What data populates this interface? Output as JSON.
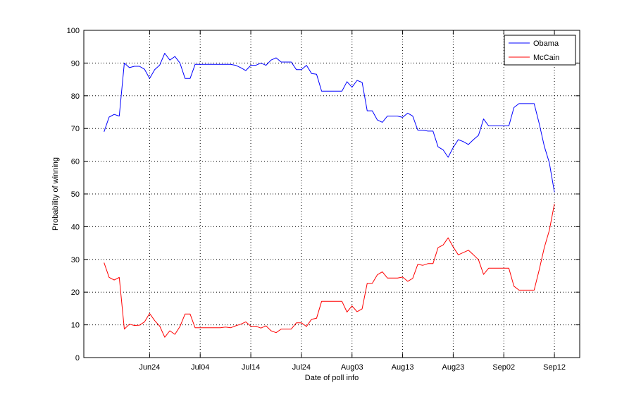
{
  "chart_data": {
    "type": "line",
    "title": "",
    "xlabel": "Date of poll info",
    "ylabel": "Probability of winning",
    "x_ticks": [
      "Jun24",
      "Jul04",
      "Jul14",
      "Jul24",
      "Aug03",
      "Aug13",
      "Aug23",
      "Sep02",
      "Sep12"
    ],
    "x_tick_days": [
      0,
      10,
      20,
      30,
      40,
      50,
      60,
      70,
      80
    ],
    "xlim": [
      "2008-06-11",
      "2008-09-17"
    ],
    "ylim": [
      0,
      100
    ],
    "y_ticks": [
      "0",
      "10",
      "20",
      "30",
      "40",
      "50",
      "60",
      "70",
      "80",
      "90",
      "100"
    ],
    "grid": true,
    "legend_position": "top-right",
    "series": [
      {
        "name": "Obama",
        "color": "#0000ff",
        "points": [
          [
            "2008-06-15",
            69
          ],
          [
            "2008-06-16",
            73.5
          ],
          [
            "2008-06-17",
            74.3
          ],
          [
            "2008-06-18",
            73.8
          ],
          [
            "2008-06-19",
            90
          ],
          [
            "2008-06-20",
            88.6
          ],
          [
            "2008-06-21",
            89
          ],
          [
            "2008-06-22",
            89
          ],
          [
            "2008-06-23",
            88.1
          ],
          [
            "2008-06-24",
            85.3
          ],
          [
            "2008-06-25",
            88
          ],
          [
            "2008-06-26",
            89.4
          ],
          [
            "2008-06-27",
            93
          ],
          [
            "2008-06-28",
            90.9
          ],
          [
            "2008-06-29",
            92
          ],
          [
            "2008-06-30",
            90
          ],
          [
            "2008-07-01",
            85.3
          ],
          [
            "2008-07-02",
            85.3
          ],
          [
            "2008-07-03",
            89.6
          ],
          [
            "2008-07-04",
            89.6
          ],
          [
            "2008-07-05",
            89.6
          ],
          [
            "2008-07-06",
            89.6
          ],
          [
            "2008-07-07",
            89.6
          ],
          [
            "2008-07-08",
            89.6
          ],
          [
            "2008-07-09",
            89.6
          ],
          [
            "2008-07-10",
            89.6
          ],
          [
            "2008-07-11",
            89.3
          ],
          [
            "2008-07-12",
            88.6
          ],
          [
            "2008-07-13",
            87.7
          ],
          [
            "2008-07-14",
            89.3
          ],
          [
            "2008-07-15",
            89.3
          ],
          [
            "2008-07-16",
            90
          ],
          [
            "2008-07-17",
            89.3
          ],
          [
            "2008-07-18",
            90.9
          ],
          [
            "2008-07-19",
            91.6
          ],
          [
            "2008-07-20",
            90.3
          ],
          [
            "2008-07-21",
            90.3
          ],
          [
            "2008-07-22",
            90.3
          ],
          [
            "2008-07-23",
            88
          ],
          [
            "2008-07-24",
            88
          ],
          [
            "2008-07-25",
            89.3
          ],
          [
            "2008-07-26",
            86.8
          ],
          [
            "2008-07-27",
            86.6
          ],
          [
            "2008-07-28",
            81.4
          ],
          [
            "2008-07-29",
            81.4
          ],
          [
            "2008-07-30",
            81.4
          ],
          [
            "2008-07-31",
            81.4
          ],
          [
            "2008-08-01",
            81.4
          ],
          [
            "2008-08-02",
            84.3
          ],
          [
            "2008-08-03",
            82.6
          ],
          [
            "2008-08-04",
            84.7
          ],
          [
            "2008-08-05",
            84.1
          ],
          [
            "2008-08-06",
            75.4
          ],
          [
            "2008-08-07",
            75.4
          ],
          [
            "2008-08-08",
            72.6
          ],
          [
            "2008-08-09",
            71.9
          ],
          [
            "2008-08-10",
            73.8
          ],
          [
            "2008-08-11",
            73.8
          ],
          [
            "2008-08-12",
            73.8
          ],
          [
            "2008-08-13",
            73.4
          ],
          [
            "2008-08-14",
            74.7
          ],
          [
            "2008-08-15",
            73.8
          ],
          [
            "2008-08-16",
            69.5
          ],
          [
            "2008-08-17",
            69.5
          ],
          [
            "2008-08-18",
            69.2
          ],
          [
            "2008-08-19",
            69.2
          ],
          [
            "2008-08-20",
            64.4
          ],
          [
            "2008-08-21",
            63.5
          ],
          [
            "2008-08-22",
            61.2
          ],
          [
            "2008-08-23",
            64.2
          ],
          [
            "2008-08-24",
            66.6
          ],
          [
            "2008-08-25",
            66
          ],
          [
            "2008-08-26",
            65.1
          ],
          [
            "2008-08-27",
            66.6
          ],
          [
            "2008-08-28",
            67.9
          ],
          [
            "2008-08-29",
            72.9
          ],
          [
            "2008-08-30",
            70.8
          ],
          [
            "2008-08-31",
            70.8
          ],
          [
            "2008-09-01",
            70.8
          ],
          [
            "2008-09-02",
            70.8
          ],
          [
            "2008-09-03",
            70.8
          ],
          [
            "2008-09-04",
            76.4
          ],
          [
            "2008-09-05",
            77.6
          ],
          [
            "2008-09-06",
            77.6
          ],
          [
            "2008-09-07",
            77.6
          ],
          [
            "2008-09-08",
            77.6
          ],
          [
            "2008-09-09",
            71.5
          ],
          [
            "2008-09-10",
            64.6
          ],
          [
            "2008-09-11",
            59.5
          ],
          [
            "2008-09-12",
            50.5
          ]
        ]
      },
      {
        "name": "McCain",
        "color": "#ff0000",
        "points": [
          [
            "2008-06-15",
            29
          ],
          [
            "2008-06-16",
            24.5
          ],
          [
            "2008-06-17",
            23.7
          ],
          [
            "2008-06-18",
            24.5
          ],
          [
            "2008-06-19",
            8.7
          ],
          [
            "2008-06-20",
            10.2
          ],
          [
            "2008-06-21",
            9.8
          ],
          [
            "2008-06-22",
            9.9
          ],
          [
            "2008-06-23",
            10.9
          ],
          [
            "2008-06-24",
            13.5
          ],
          [
            "2008-06-25",
            11.3
          ],
          [
            "2008-06-26",
            9.6
          ],
          [
            "2008-06-27",
            6.2
          ],
          [
            "2008-06-28",
            8.2
          ],
          [
            "2008-06-29",
            7.1
          ],
          [
            "2008-06-30",
            9.5
          ],
          [
            "2008-07-01",
            13.3
          ],
          [
            "2008-07-02",
            13.3
          ],
          [
            "2008-07-03",
            9.1
          ],
          [
            "2008-07-04",
            9.1
          ],
          [
            "2008-07-05",
            9.1
          ],
          [
            "2008-07-06",
            9.1
          ],
          [
            "2008-07-07",
            9.1
          ],
          [
            "2008-07-08",
            9.1
          ],
          [
            "2008-07-09",
            9.3
          ],
          [
            "2008-07-10",
            9.1
          ],
          [
            "2008-07-11",
            9.7
          ],
          [
            "2008-07-12",
            10.2
          ],
          [
            "2008-07-13",
            10.9
          ],
          [
            "2008-07-14",
            9.6
          ],
          [
            "2008-07-15",
            9.6
          ],
          [
            "2008-07-16",
            9.0
          ],
          [
            "2008-07-17",
            9.7
          ],
          [
            "2008-07-18",
            8.2
          ],
          [
            "2008-07-19",
            7.6
          ],
          [
            "2008-07-20",
            8.7
          ],
          [
            "2008-07-21",
            8.7
          ],
          [
            "2008-07-22",
            8.7
          ],
          [
            "2008-07-23",
            10.6
          ],
          [
            "2008-07-24",
            10.6
          ],
          [
            "2008-07-25",
            9.5
          ],
          [
            "2008-07-26",
            11.7
          ],
          [
            "2008-07-27",
            12.0
          ],
          [
            "2008-07-28",
            17.2
          ],
          [
            "2008-07-29",
            17.2
          ],
          [
            "2008-07-30",
            17.2
          ],
          [
            "2008-07-31",
            17.2
          ],
          [
            "2008-08-01",
            17.2
          ],
          [
            "2008-08-02",
            13.9
          ],
          [
            "2008-08-03",
            15.8
          ],
          [
            "2008-08-04",
            14.0
          ],
          [
            "2008-08-05",
            14.9
          ],
          [
            "2008-08-06",
            22.7
          ],
          [
            "2008-08-07",
            22.7
          ],
          [
            "2008-08-08",
            25.3
          ],
          [
            "2008-08-09",
            26.2
          ],
          [
            "2008-08-10",
            24.3
          ],
          [
            "2008-08-11",
            24.3
          ],
          [
            "2008-08-12",
            24.3
          ],
          [
            "2008-08-13",
            24.6
          ],
          [
            "2008-08-14",
            23.3
          ],
          [
            "2008-08-15",
            24.2
          ],
          [
            "2008-08-16",
            28.5
          ],
          [
            "2008-08-17",
            28.2
          ],
          [
            "2008-08-18",
            28.7
          ],
          [
            "2008-08-19",
            28.7
          ],
          [
            "2008-08-20",
            33.6
          ],
          [
            "2008-08-21",
            34.4
          ],
          [
            "2008-08-22",
            36.6
          ],
          [
            "2008-08-23",
            33.8
          ],
          [
            "2008-08-24",
            31.4
          ],
          [
            "2008-08-25",
            32.1
          ],
          [
            "2008-08-26",
            32.8
          ],
          [
            "2008-08-27",
            31.4
          ],
          [
            "2008-08-28",
            29.9
          ],
          [
            "2008-08-29",
            25.4
          ],
          [
            "2008-08-30",
            27.3
          ],
          [
            "2008-08-31",
            27.3
          ],
          [
            "2008-09-01",
            27.3
          ],
          [
            "2008-09-02",
            27.3
          ],
          [
            "2008-09-03",
            27.3
          ],
          [
            "2008-09-04",
            21.8
          ],
          [
            "2008-09-05",
            20.6
          ],
          [
            "2008-09-06",
            20.6
          ],
          [
            "2008-09-07",
            20.6
          ],
          [
            "2008-09-08",
            20.6
          ],
          [
            "2008-09-09",
            26.8
          ],
          [
            "2008-09-10",
            33.6
          ],
          [
            "2008-09-11",
            38.9
          ],
          [
            "2008-09-12",
            47.0
          ]
        ]
      }
    ]
  }
}
